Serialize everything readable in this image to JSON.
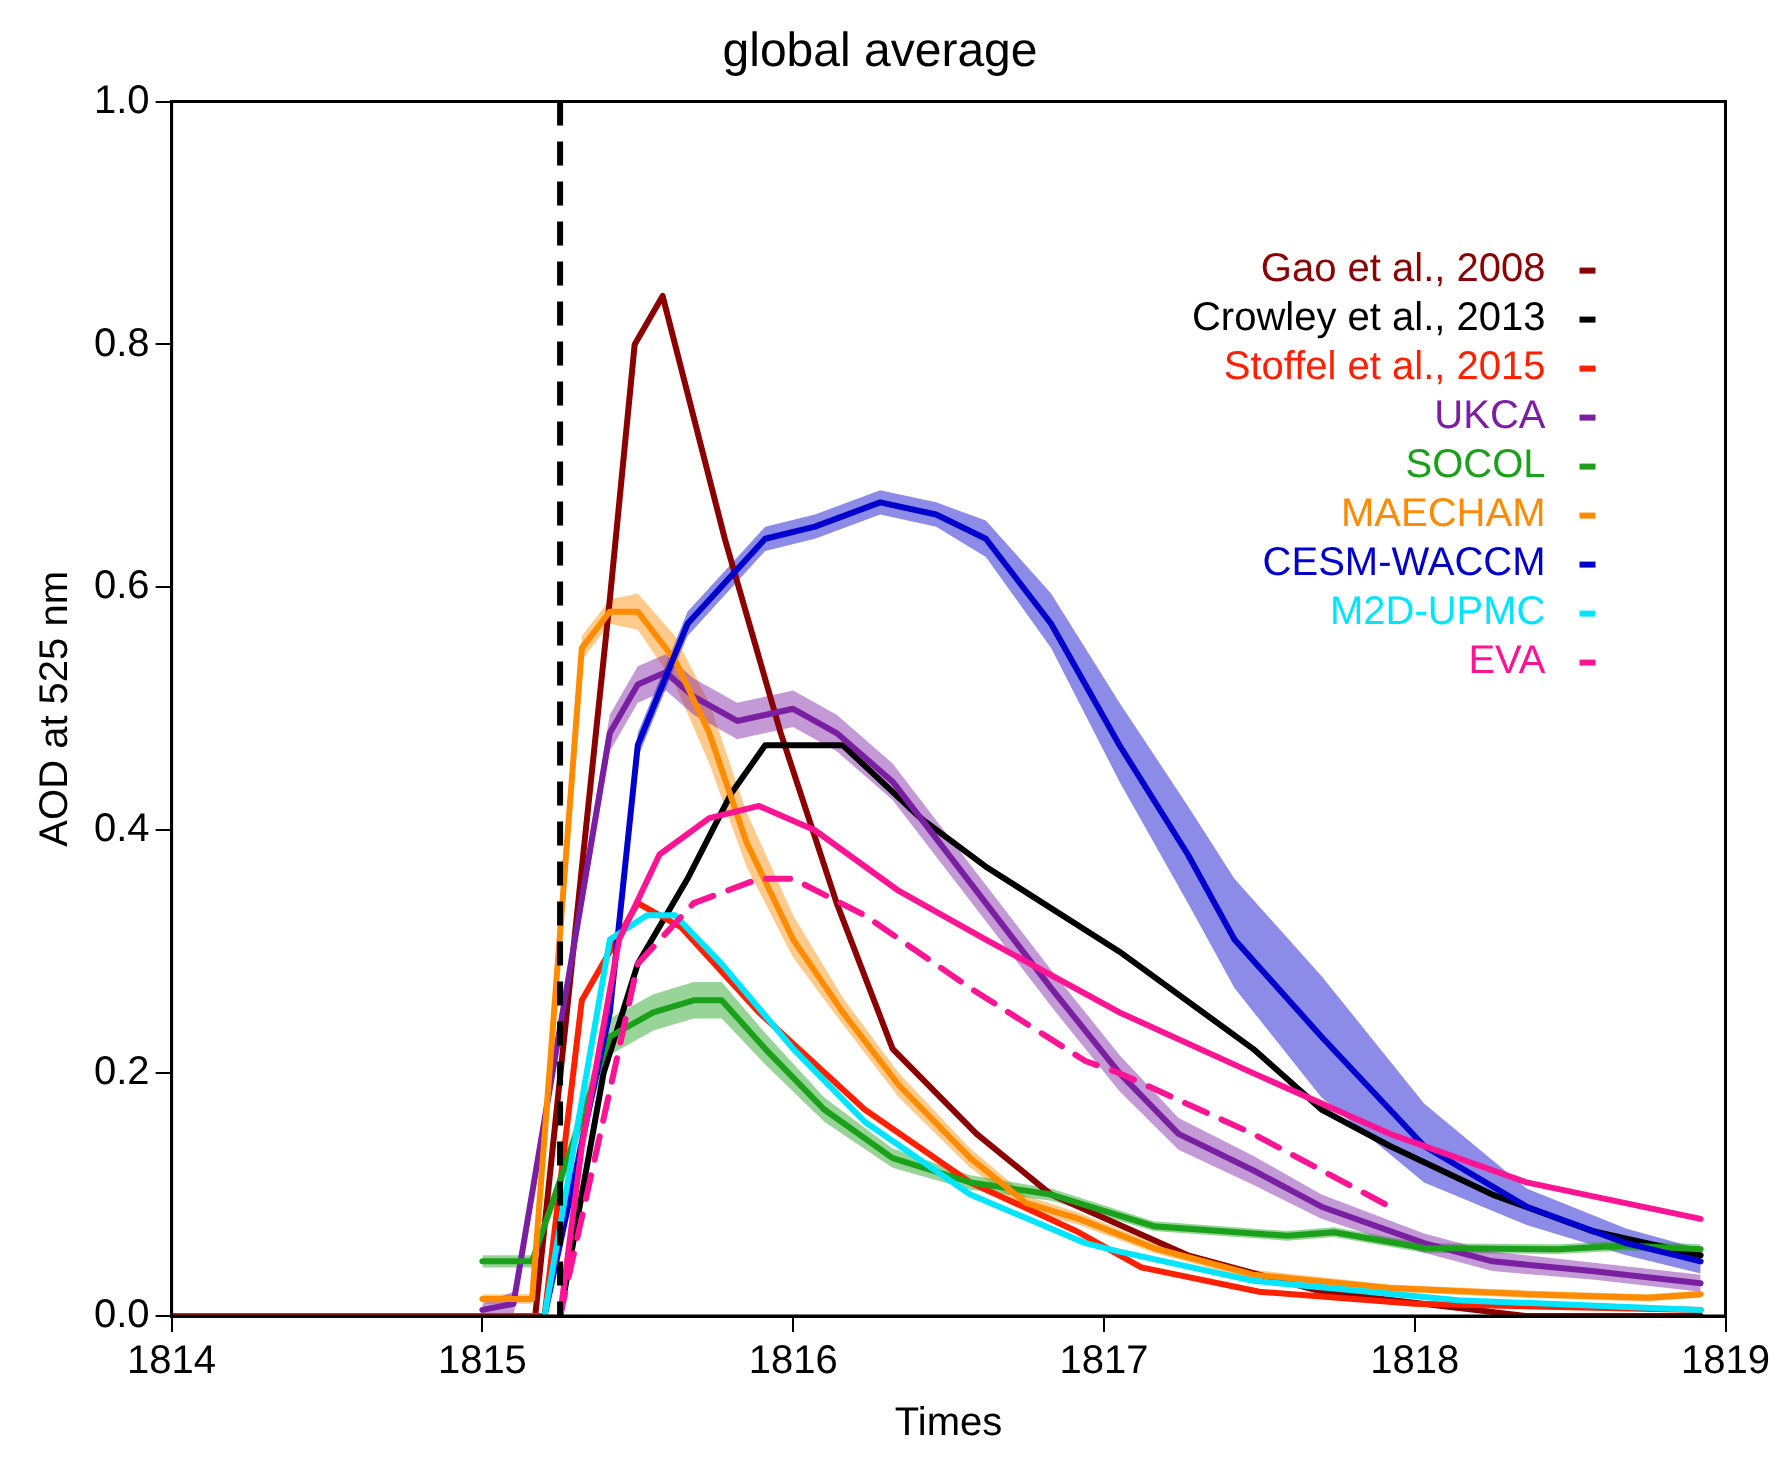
{
  "chart_data": {
    "type": "line",
    "title": "global average",
    "xlabel": "Times",
    "ylabel": "AOD at 525 nm",
    "xlim": [
      1814,
      1819
    ],
    "xticks": [
      1814,
      1815,
      1816,
      1817,
      1818,
      1819
    ],
    "ylim": [
      0,
      1
    ],
    "yticks": [
      {
        "value": 0,
        "label": "0.0"
      },
      0.2,
      0.4,
      0.6,
      0.8,
      {
        "value": 1,
        "label": "1.0"
      }
    ],
    "grid": false,
    "legend": "top right",
    "marker": "none",
    "ref_lines": [
      {
        "axis": "x",
        "value": 1815.25,
        "color": "#000000",
        "line_style": "dashed"
      }
    ],
    "series": [
      {
        "name": "Gao et al., 2008",
        "color": "#8b0000",
        "x": [
          1814,
          1815.17,
          1815.41,
          1815.49,
          1815.58,
          1815.78,
          1815.96,
          1816.14,
          1816.32,
          1816.59,
          1816.83,
          1817.27,
          1817.7,
          1818.36,
          1818.92
        ],
        "values": [
          0,
          0,
          0.59,
          0.8,
          0.84,
          0.64,
          0.48,
          0.34,
          0.22,
          0.15,
          0.1,
          0.05,
          0.02,
          0,
          0
        ]
      },
      {
        "name": "Crowley et al., 2013",
        "color": "#000000",
        "x": [
          1815.25,
          1815.39,
          1815.5,
          1815.66,
          1815.8,
          1815.91,
          1816.16,
          1816.41,
          1816.62,
          1817.05,
          1817.48,
          1817.7,
          1817.92,
          1818.25,
          1818.57,
          1818.92
        ],
        "values": [
          0,
          0.2,
          0.29,
          0.36,
          0.43,
          0.47,
          0.47,
          0.41,
          0.37,
          0.3,
          0.22,
          0.17,
          0.14,
          0.1,
          0.07,
          0.05
        ]
      },
      {
        "name": "Stoffel et al., 2015",
        "color": "#ff2000",
        "x": [
          1814,
          1815.2,
          1815.32,
          1815.5,
          1815.64,
          1815.89,
          1816.23,
          1816.57,
          1816.91,
          1817.12,
          1817.5,
          1818,
          1818.92
        ],
        "values": [
          0,
          0,
          0.26,
          0.34,
          0.32,
          0.25,
          0.17,
          0.11,
          0.07,
          0.04,
          0.02,
          0.01,
          0.005
        ]
      },
      {
        "name": "UKCA",
        "color": "#7b1fa2",
        "x": [
          1815,
          1815.1,
          1815.41,
          1815.5,
          1815.59,
          1815.68,
          1815.82,
          1816,
          1816.14,
          1816.32,
          1816.62,
          1816.83,
          1817.05,
          1817.24,
          1817.48,
          1817.7,
          1818.03,
          1818.25,
          1818.57,
          1818.92
        ],
        "values": [
          0.005,
          0.01,
          0.48,
          0.52,
          0.53,
          0.51,
          0.49,
          0.5,
          0.48,
          0.44,
          0.34,
          0.27,
          0.2,
          0.15,
          0.12,
          0.09,
          0.06,
          0.045,
          0.037,
          0.027
        ],
        "lower": [
          0.0,
          0.0,
          0.465,
          0.505,
          0.515,
          0.495,
          0.475,
          0.485,
          0.465,
          0.425,
          0.325,
          0.255,
          0.185,
          0.137,
          0.108,
          0.08,
          0.052,
          0.037,
          0.03,
          0.02
        ],
        "upper": [
          0.01,
          0.02,
          0.495,
          0.535,
          0.545,
          0.525,
          0.505,
          0.515,
          0.495,
          0.455,
          0.355,
          0.285,
          0.215,
          0.163,
          0.132,
          0.1,
          0.068,
          0.053,
          0.044,
          0.034
        ]
      },
      {
        "name": "SOCOL",
        "color": "#1aa01a",
        "x": [
          1815,
          1815.16,
          1815.41,
          1815.55,
          1815.68,
          1815.77,
          1815.91,
          1816.1,
          1816.32,
          1816.57,
          1816.83,
          1817.16,
          1817.59,
          1817.74,
          1818.03,
          1818.46,
          1818.68,
          1818.92
        ],
        "values": [
          0.045,
          0.045,
          0.23,
          0.25,
          0.26,
          0.26,
          0.22,
          0.17,
          0.13,
          0.11,
          0.1,
          0.074,
          0.066,
          0.069,
          0.056,
          0.055,
          0.058,
          0.055
        ],
        "lower": [
          0.04,
          0.04,
          0.215,
          0.235,
          0.245,
          0.245,
          0.207,
          0.16,
          0.122,
          0.104,
          0.095,
          0.07,
          0.062,
          0.065,
          0.052,
          0.051,
          0.054,
          0.051
        ],
        "upper": [
          0.05,
          0.05,
          0.245,
          0.265,
          0.275,
          0.275,
          0.233,
          0.18,
          0.138,
          0.116,
          0.105,
          0.078,
          0.07,
          0.073,
          0.06,
          0.059,
          0.062,
          0.059
        ]
      },
      {
        "name": "MAECHAM",
        "color": "#ff8c00",
        "x": [
          1815,
          1815.16,
          1815.32,
          1815.41,
          1815.5,
          1815.62,
          1815.73,
          1815.85,
          1816,
          1816.16,
          1816.34,
          1816.57,
          1816.75,
          1816.92,
          1817.16,
          1817.48,
          1817.92,
          1818.36,
          1818.75,
          1818.92
        ],
        "values": [
          0.014,
          0.014,
          0.55,
          0.58,
          0.58,
          0.54,
          0.48,
          0.39,
          0.31,
          0.25,
          0.19,
          0.13,
          0.093,
          0.08,
          0.056,
          0.034,
          0.023,
          0.018,
          0.015,
          0.018
        ],
        "lower": [
          0.01,
          0.01,
          0.54,
          0.57,
          0.565,
          0.52,
          0.455,
          0.37,
          0.295,
          0.24,
          0.18,
          0.122,
          0.087,
          0.075,
          0.052,
          0.03,
          0.02,
          0.015,
          0.012,
          0.015
        ],
        "upper": [
          0.018,
          0.018,
          0.56,
          0.59,
          0.595,
          0.56,
          0.505,
          0.415,
          0.33,
          0.262,
          0.2,
          0.138,
          0.099,
          0.085,
          0.06,
          0.038,
          0.026,
          0.021,
          0.018,
          0.021
        ]
      },
      {
        "name": "CESM-WACCM",
        "color": "#0000cc",
        "x": [
          1815.2,
          1815.41,
          1815.5,
          1815.66,
          1815.91,
          1816.07,
          1816.28,
          1816.46,
          1816.62,
          1816.83,
          1817.05,
          1817.27,
          1817.42,
          1817.7,
          1818.03,
          1818.36,
          1818.68,
          1818.92
        ],
        "values": [
          0,
          0.25,
          0.47,
          0.57,
          0.64,
          0.65,
          0.67,
          0.66,
          0.64,
          0.57,
          0.47,
          0.38,
          0.31,
          0.23,
          0.14,
          0.09,
          0.06,
          0.045
        ],
        "lower": [
          0,
          0.24,
          0.46,
          0.56,
          0.63,
          0.64,
          0.66,
          0.65,
          0.625,
          0.55,
          0.44,
          0.34,
          0.27,
          0.18,
          0.11,
          0.075,
          0.05,
          0.035
        ],
        "upper": [
          0.005,
          0.26,
          0.48,
          0.58,
          0.65,
          0.66,
          0.68,
          0.67,
          0.655,
          0.595,
          0.505,
          0.42,
          0.36,
          0.28,
          0.175,
          0.105,
          0.072,
          0.055
        ]
      },
      {
        "name": "M2D-UPMC",
        "color": "#00e5ff",
        "x": [
          1815.2,
          1815.41,
          1815.53,
          1815.62,
          1815.77,
          1816,
          1816.23,
          1816.57,
          1816.94,
          1817.05,
          1817.48,
          1818.14,
          1818.92
        ],
        "values": [
          0,
          0.31,
          0.33,
          0.33,
          0.29,
          0.22,
          0.16,
          0.1,
          0.06,
          0.053,
          0.029,
          0.013,
          0.005
        ]
      },
      {
        "name": "EVA",
        "color": "#ff1493",
        "x": [
          1815.25,
          1815.32,
          1815.44,
          1815.57,
          1815.73,
          1815.89,
          1816.07,
          1816.34,
          1816.62,
          1817.05,
          1817.48,
          1817.92,
          1818.36,
          1818.92
        ],
        "values": [
          0,
          0.14,
          0.31,
          0.38,
          0.41,
          0.42,
          0.4,
          0.35,
          0.31,
          0.25,
          0.2,
          0.15,
          0.11,
          0.08
        ]
      },
      {
        "color": "#ff1493",
        "line_style": "dashed",
        "x": [
          1815.25,
          1815.5,
          1815.68,
          1815.89,
          1816,
          1816.23,
          1816.57,
          1816.94,
          1817.05,
          1817.48,
          1817.92
        ],
        "values": [
          0,
          0.29,
          0.34,
          0.36,
          0.36,
          0.33,
          0.27,
          0.21,
          0.2,
          0.15,
          0.09
        ]
      }
    ]
  }
}
